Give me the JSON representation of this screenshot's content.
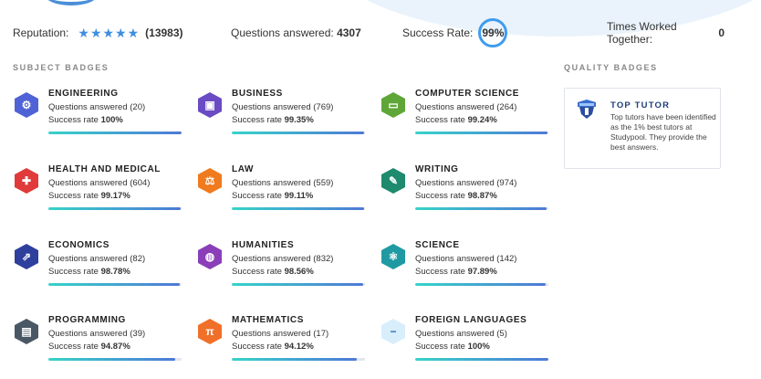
{
  "stats": {
    "reputation_label": "Reputation:",
    "stars": "★★★★★",
    "reputation_count": "(13983)",
    "questions_label": "Questions answered:",
    "questions_value": "4307",
    "success_label": "Success Rate:",
    "success_value": "99%",
    "times_label": "Times Worked Together:",
    "times_value": "0"
  },
  "subject_title": "SUBJECT BADGES",
  "quality_title": "QUALITY BADGES",
  "badges": [
    {
      "name": "ENGINEERING",
      "questions": "Questions answered (20)",
      "success_label": "Success rate",
      "success": "100%",
      "rate": 1.0,
      "color": "#4f63d6",
      "icon": "gears-icon",
      "glyph": "⚙"
    },
    {
      "name": "BUSINESS",
      "questions": "Questions answered (769)",
      "success_label": "Success rate",
      "success": "99.35%",
      "rate": 0.9935,
      "color": "#6a4bc4",
      "icon": "briefcase-icon",
      "glyph": "▣"
    },
    {
      "name": "COMPUTER SCIENCE",
      "questions": "Questions answered (264)",
      "success_label": "Success rate",
      "success": "99.24%",
      "rate": 0.9924,
      "color": "#5fa638",
      "icon": "computer-icon",
      "glyph": "▭"
    },
    {
      "name": "HEALTH AND MEDICAL",
      "questions": "Questions answered (604)",
      "success_label": "Success rate",
      "success": "99.17%",
      "rate": 0.9917,
      "color": "#e03a3a",
      "icon": "medical-cross-icon",
      "glyph": "✚"
    },
    {
      "name": "LAW",
      "questions": "Questions answered (559)",
      "success_label": "Success rate",
      "success": "99.11%",
      "rate": 0.9911,
      "color": "#f07a1e",
      "icon": "scales-icon",
      "glyph": "⚖"
    },
    {
      "name": "WRITING",
      "questions": "Questions answered (974)",
      "success_label": "Success rate",
      "success": "98.87%",
      "rate": 0.9887,
      "color": "#1e8a6e",
      "icon": "pencil-icon",
      "glyph": "✎"
    },
    {
      "name": "ECONOMICS",
      "questions": "Questions answered (82)",
      "success_label": "Success rate",
      "success": "98.78%",
      "rate": 0.9878,
      "color": "#2e3f9e",
      "icon": "chart-icon",
      "glyph": "⇗"
    },
    {
      "name": "HUMANITIES",
      "questions": "Questions answered (832)",
      "success_label": "Success rate",
      "success": "98.56%",
      "rate": 0.9856,
      "color": "#8a3fb8",
      "icon": "globe-icon",
      "glyph": "◍"
    },
    {
      "name": "SCIENCE",
      "questions": "Questions answered (142)",
      "success_label": "Success rate",
      "success": "97.89%",
      "rate": 0.9789,
      "color": "#1f9aa3",
      "icon": "atom-icon",
      "glyph": "⚛"
    },
    {
      "name": "PROGRAMMING",
      "questions": "Questions answered (39)",
      "success_label": "Success rate",
      "success": "94.87%",
      "rate": 0.9487,
      "color": "#4a5866",
      "icon": "terminal-icon",
      "glyph": "▤"
    },
    {
      "name": "MATHEMATICS",
      "questions": "Questions answered (17)",
      "success_label": "Success rate",
      "success": "94.12%",
      "rate": 0.9412,
      "color": "#f0702a",
      "icon": "pi-icon",
      "glyph": "π"
    },
    {
      "name": "FOREIGN LANGUAGES",
      "questions": "Questions answered (5)",
      "success_label": "Success rate",
      "success": "100%",
      "rate": 1.0,
      "color": "#d8eefb",
      "icon": "minus-icon",
      "glyph": "−"
    }
  ],
  "quality": {
    "name": "TOP TUTOR",
    "description": "Top tutors have been identified as the 1% best tutors at Studypool. They provide the best answers.",
    "icon": "shield-icon"
  }
}
